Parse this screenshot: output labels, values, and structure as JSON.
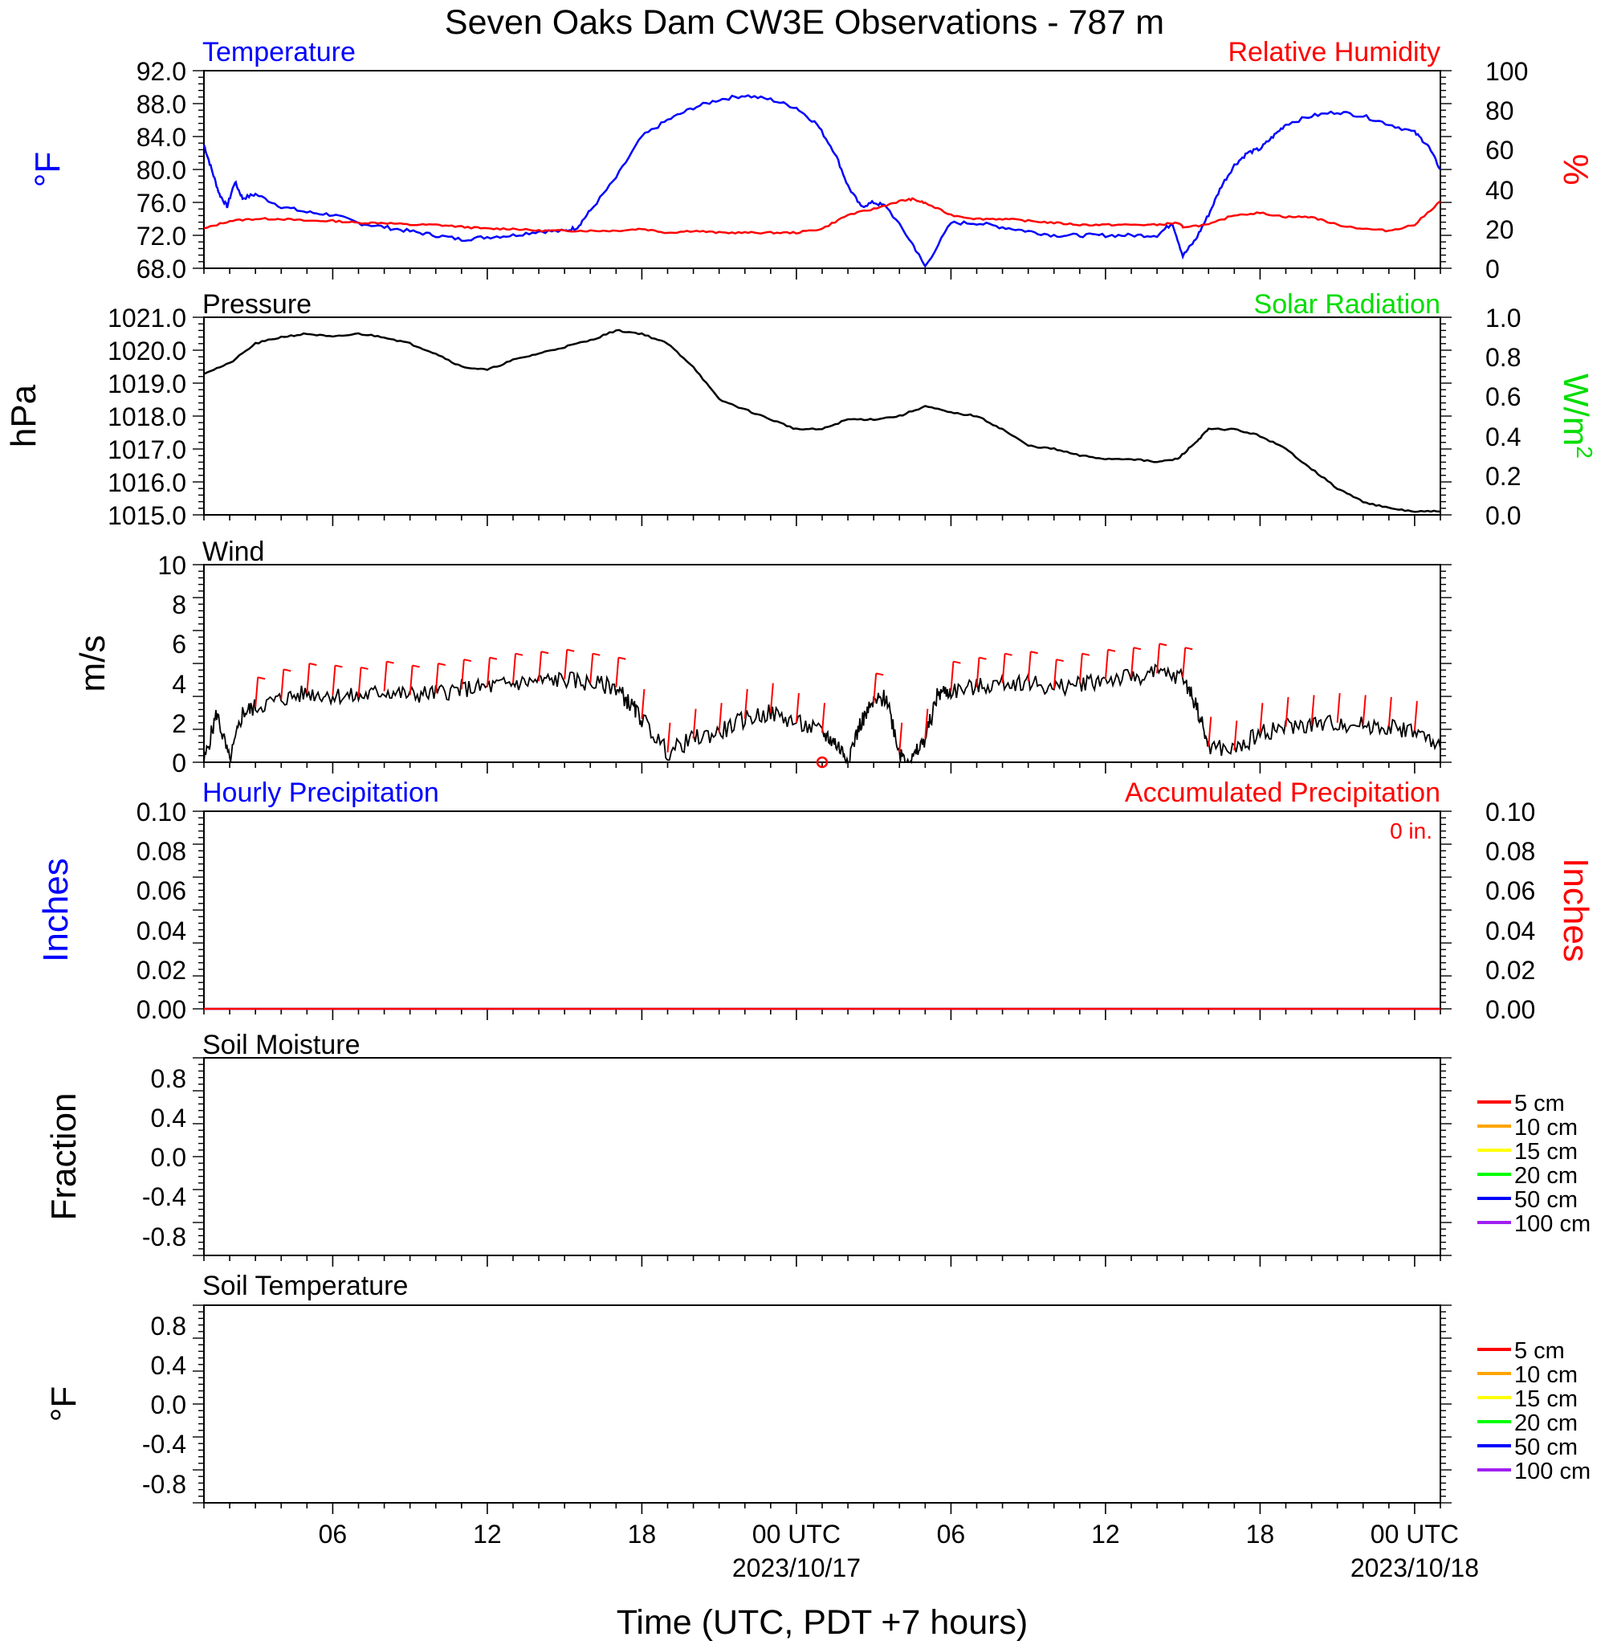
{
  "title": "Seven Oaks Dam CW3E Observations - 787 m",
  "xlabel": "Time (UTC, PDT +7 hours)",
  "x_ticks": [
    {
      "t": 6,
      "label": "06",
      "date": ""
    },
    {
      "t": 12,
      "label": "12",
      "date": ""
    },
    {
      "t": 18,
      "label": "18",
      "date": ""
    },
    {
      "t": 24,
      "label": "00 UTC",
      "date": "2023/10/17"
    },
    {
      "t": 30,
      "label": "06",
      "date": ""
    },
    {
      "t": 36,
      "label": "12",
      "date": ""
    },
    {
      "t": 42,
      "label": "18",
      "date": ""
    },
    {
      "t": 48,
      "label": "00 UTC",
      "date": "2023/10/18"
    }
  ],
  "colors": {
    "temperature": "#0000ff",
    "humidity": "#ff0000",
    "pressure": "#000000",
    "solar": "#00dd00",
    "wind": "#000000",
    "barb": "#ff0000",
    "hourly_precip": "#0000ff",
    "accum_precip": "#ff0000"
  },
  "panels": {
    "temperature": {
      "title_left": "Temperature",
      "title_right": "Relative Humidity",
      "ylabel_left": "°F",
      "ylabel_right": "%",
      "left_ticks": [
        "92.0",
        "88.0",
        "84.0",
        "80.0",
        "76.0",
        "72.0",
        "68.0"
      ],
      "right_ticks": [
        "100",
        "80",
        "60",
        "40",
        "20",
        "0"
      ]
    },
    "pressure": {
      "title_left": "Pressure",
      "title_right": "Solar Radiation",
      "ylabel_left": "hPa",
      "ylabel_right_base": "W/m",
      "ylabel_right_sup": "2",
      "left_ticks": [
        "1021.0",
        "1020.0",
        "1019.0",
        "1018.0",
        "1017.0",
        "1016.0",
        "1015.0"
      ],
      "right_ticks": [
        "1.0",
        "0.8",
        "0.6",
        "0.4",
        "0.2",
        "0.0"
      ]
    },
    "wind": {
      "title_left": "Wind",
      "ylabel_left": "m/s",
      "left_ticks": [
        "10",
        "8",
        "6",
        "4",
        "2",
        "0"
      ]
    },
    "precip": {
      "title_left": "Hourly Precipitation",
      "title_right": "Accumulated Precipitation",
      "total_label": "0 in.",
      "ylabel_left": "Inches",
      "ylabel_right": "Inches",
      "left_ticks": [
        "0.10",
        "0.08",
        "0.06",
        "0.04",
        "0.02",
        "0.00"
      ],
      "right_ticks": [
        "0.10",
        "0.08",
        "0.06",
        "0.04",
        "0.02",
        "0.00"
      ]
    },
    "soil_moisture": {
      "title_left": "Soil Moisture",
      "ylabel_left": "Fraction",
      "left_ticks": [
        "0.8",
        "0.4",
        "0.0",
        "-0.4",
        "-0.8"
      ],
      "legend": [
        {
          "label": "5 cm",
          "color": "#ff0000"
        },
        {
          "label": "10 cm",
          "color": "#ffa500"
        },
        {
          "label": "15 cm",
          "color": "#ffff00"
        },
        {
          "label": "20 cm",
          "color": "#00ff00"
        },
        {
          "label": "50 cm",
          "color": "#0000ff"
        },
        {
          "label": "100 cm",
          "color": "#a020f0"
        }
      ]
    },
    "soil_temperature": {
      "title_left": "Soil Temperature",
      "ylabel_left": "°F",
      "left_ticks": [
        "0.8",
        "0.4",
        "0.0",
        "-0.4",
        "-0.8"
      ],
      "legend": [
        {
          "label": "5 cm",
          "color": "#ff0000"
        },
        {
          "label": "10 cm",
          "color": "#ffa500"
        },
        {
          "label": "15 cm",
          "color": "#ffff00"
        },
        {
          "label": "20 cm",
          "color": "#00ff00"
        },
        {
          "label": "50 cm",
          "color": "#0000ff"
        },
        {
          "label": "100 cm",
          "color": "#a020f0"
        }
      ]
    }
  },
  "chart_data": [
    {
      "type": "line",
      "title": "Temperature / Relative Humidity",
      "x_unit": "hours since 2023/10/16 00 UTC",
      "xlim": [
        1,
        49
      ],
      "ylim_left": [
        68,
        92
      ],
      "ylim_right": [
        0,
        100
      ],
      "series": [
        {
          "name": "Temperature",
          "axis": "left",
          "color": "#0000ff",
          "x": [
            1,
            1.3,
            1.6,
            1.9,
            2.2,
            2.5,
            3,
            4,
            5,
            6,
            7,
            8,
            9,
            10,
            11,
            12,
            13,
            14,
            15,
            15.5,
            16,
            17,
            18,
            19,
            20,
            21,
            22,
            23,
            24,
            24.8,
            25.5,
            26,
            26.5,
            27,
            27.5,
            28.5,
            29,
            30,
            31,
            32,
            33,
            34,
            35,
            36,
            37,
            38,
            38.6,
            39,
            39.5,
            40,
            40.5,
            41,
            41.5,
            42,
            42.5,
            43,
            44,
            45,
            46,
            47,
            48,
            48.5,
            49
          ],
          "y": [
            83.0,
            80.0,
            77.0,
            75.5,
            78.5,
            76.5,
            77.0,
            75.5,
            74.8,
            74.5,
            73.5,
            73.0,
            72.5,
            72.0,
            71.5,
            71.8,
            72.0,
            72.5,
            72.5,
            73.0,
            75.0,
            79.0,
            84.0,
            86.0,
            87.5,
            88.5,
            89.0,
            88.5,
            87.5,
            85.5,
            82.0,
            78.0,
            75.5,
            76.0,
            75.5,
            71.0,
            68.2,
            73.5,
            73.5,
            73.0,
            72.5,
            72.0,
            72.0,
            72.0,
            72.0,
            72.0,
            73.5,
            69.5,
            71.5,
            74.5,
            78.0,
            80.5,
            82.0,
            82.5,
            84.0,
            85.5,
            86.5,
            87.0,
            86.5,
            85.5,
            84.5,
            83.0,
            80.0
          ]
        },
        {
          "name": "Relative Humidity",
          "axis": "right",
          "color": "#ff0000",
          "x": [
            1,
            2,
            3,
            4,
            5,
            6,
            7,
            8,
            9,
            10,
            11,
            12,
            13,
            14,
            15,
            16,
            17,
            18,
            19,
            20,
            21,
            22,
            23,
            24,
            25,
            26,
            27,
            28,
            28.5,
            29,
            30,
            31,
            32,
            33,
            34,
            35,
            36,
            37,
            38,
            38.8,
            39,
            40,
            41,
            42,
            43,
            44,
            45,
            46,
            47,
            48,
            49
          ],
          "y": [
            20,
            24,
            25,
            25,
            24,
            24,
            23,
            23,
            22,
            22,
            21,
            20,
            20,
            19,
            19,
            19,
            19,
            20,
            18,
            19,
            18,
            18,
            18,
            18,
            20,
            27,
            30,
            34,
            35,
            33,
            27,
            25,
            25,
            24,
            23,
            22,
            22,
            22,
            22,
            23,
            21,
            22,
            27,
            28,
            26,
            26,
            22,
            20,
            19,
            22,
            34
          ]
        }
      ]
    },
    {
      "type": "line",
      "title": "Pressure / Solar Radiation",
      "x_unit": "hours since 2023/10/16 00 UTC",
      "xlim": [
        1,
        49
      ],
      "ylim_left": [
        1015,
        1021
      ],
      "ylim_right": [
        0,
        1.0
      ],
      "series": [
        {
          "name": "Pressure",
          "axis": "left",
          "color": "#000000",
          "x": [
            1,
            2,
            3,
            4,
            5,
            6,
            7,
            8,
            9,
            10,
            11,
            12,
            13,
            14,
            15,
            16,
            17,
            18,
            19,
            20,
            21,
            22,
            23,
            24,
            25,
            26,
            27,
            28,
            29,
            30,
            31,
            32,
            33,
            34,
            35,
            36,
            37,
            38,
            38.8,
            39.5,
            40,
            41,
            42,
            43,
            44,
            45,
            46,
            47,
            48,
            49
          ],
          "y": [
            1019.3,
            1019.6,
            1020.2,
            1020.4,
            1020.5,
            1020.4,
            1020.5,
            1020.4,
            1020.2,
            1019.9,
            1019.5,
            1019.4,
            1019.7,
            1019.9,
            1020.1,
            1020.3,
            1020.6,
            1020.5,
            1020.2,
            1019.5,
            1018.5,
            1018.2,
            1017.9,
            1017.6,
            1017.6,
            1017.9,
            1017.9,
            1018.0,
            1018.3,
            1018.1,
            1018.0,
            1017.6,
            1017.1,
            1017.0,
            1016.8,
            1016.7,
            1016.7,
            1016.6,
            1016.7,
            1017.2,
            1017.6,
            1017.6,
            1017.4,
            1017.0,
            1016.4,
            1015.8,
            1015.4,
            1015.2,
            1015.1,
            1015.1
          ]
        }
      ]
    },
    {
      "type": "line",
      "title": "Wind",
      "x_unit": "hours since 2023/10/16 00 UTC",
      "xlim": [
        1,
        49
      ],
      "ylim": [
        0,
        10
      ],
      "series": [
        {
          "name": "Wind speed",
          "color": "#000000",
          "x": [
            1,
            1.5,
            2,
            2.5,
            3,
            4,
            5,
            6,
            7,
            8,
            9,
            10,
            11,
            12,
            13,
            14,
            15,
            16,
            17,
            17.5,
            18,
            19,
            20,
            21,
            22,
            23,
            24,
            25,
            25.5,
            26,
            26.5,
            27,
            27.5,
            28,
            28.5,
            29,
            29.5,
            30,
            31,
            32,
            33,
            34,
            35,
            36,
            37,
            38,
            39,
            39.5,
            40,
            41,
            42,
            43,
            44,
            45,
            46,
            47,
            48,
            49
          ],
          "y": [
            0.0,
            2.5,
            0.0,
            2.5,
            2.8,
            3.2,
            3.5,
            3.4,
            3.3,
            3.6,
            3.4,
            3.5,
            3.7,
            3.8,
            4.0,
            4.1,
            4.2,
            4.0,
            3.8,
            3.0,
            2.2,
            0.5,
            1.2,
            1.5,
            2.2,
            2.5,
            2.0,
            1.5,
            1.0,
            0.2,
            2.0,
            3.0,
            3.3,
            0.5,
            0.1,
            1.2,
            3.5,
            3.6,
            3.8,
            4.0,
            4.1,
            3.7,
            4.0,
            4.2,
            4.3,
            4.5,
            4.3,
            3.0,
            0.8,
            0.6,
            1.5,
            1.8,
            1.9,
            2.0,
            1.9,
            1.8,
            1.6,
            0.7
          ]
        }
      ],
      "barbs_at_hours": [
        3,
        4,
        5,
        6,
        7,
        8,
        9,
        10,
        11,
        12,
        13,
        14,
        15,
        16,
        17,
        18,
        19,
        20,
        21,
        22,
        23,
        24,
        25,
        26,
        27,
        28,
        29,
        30,
        31,
        32,
        33,
        34,
        35,
        36,
        37,
        38,
        39,
        40,
        41,
        42,
        43,
        44,
        45,
        46,
        47,
        48
      ],
      "calm_marker_hour": 25
    },
    {
      "type": "line",
      "title": "Hourly Precipitation / Accumulated Precipitation",
      "x_unit": "hours since 2023/10/16 00 UTC",
      "xlim": [
        1,
        49
      ],
      "ylim_left": [
        0,
        0.1
      ],
      "ylim_right": [
        0,
        0.1
      ],
      "series": [
        {
          "name": "Hourly Precipitation",
          "axis": "left",
          "color": "#0000ff",
          "x": [
            1,
            49
          ],
          "y": [
            0,
            0
          ]
        },
        {
          "name": "Accumulated Precipitation",
          "axis": "right",
          "color": "#ff0000",
          "x": [
            1,
            49
          ],
          "y": [
            0,
            0
          ]
        }
      ]
    },
    {
      "type": "line",
      "title": "Soil Moisture",
      "xlim": [
        1,
        49
      ],
      "ylim": [
        -1,
        1
      ],
      "series": []
    },
    {
      "type": "line",
      "title": "Soil Temperature",
      "xlim": [
        1,
        49
      ],
      "ylim": [
        -1,
        1
      ],
      "series": []
    }
  ]
}
